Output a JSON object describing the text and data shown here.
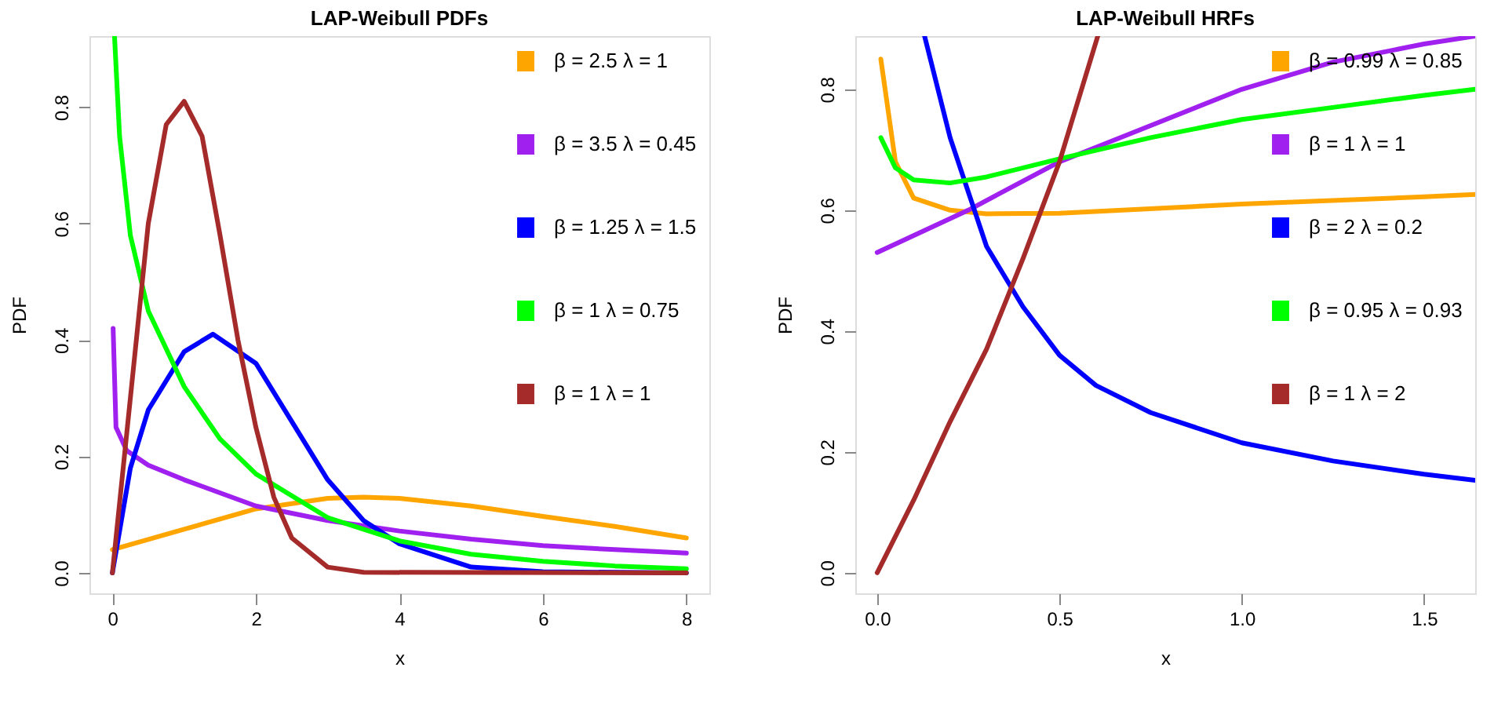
{
  "chart_data": [
    {
      "type": "line",
      "title": "LAP-Weibull PDFs",
      "xlabel": "x",
      "ylabel": "PDF",
      "xlim": [
        -0.32,
        8.32
      ],
      "ylim": [
        -0.035,
        0.922
      ],
      "xticks": [
        0,
        2,
        4,
        6,
        8
      ],
      "yticks": [
        {
          "value": 0,
          "label": "0.0"
        },
        {
          "value": 0.2,
          "label": "0.2"
        },
        {
          "value": 0.4,
          "label": "0.4"
        },
        {
          "value": 0.6,
          "label": "0.6"
        },
        {
          "value": 0.8,
          "label": "0.8"
        }
      ],
      "grid": false,
      "legend": "top right",
      "line_style": "solid",
      "series": [
        {
          "name": "β = 2.5  λ = 1",
          "color": "#ffa500",
          "x": [
            0,
            1,
            2,
            3,
            3.5,
            4,
            5,
            6,
            7,
            8
          ],
          "values": [
            0.04,
            0.075,
            0.11,
            0.128,
            0.13,
            0.128,
            0.115,
            0.097,
            0.08,
            0.06
          ]
        },
        {
          "name": "β = 3.5  λ = 0.45",
          "color": "#a020f0",
          "x": [
            0.01,
            0.05,
            0.2,
            0.5,
            1,
            2,
            3,
            4,
            5,
            6,
            7,
            8
          ],
          "values": [
            0.42,
            0.25,
            0.21,
            0.185,
            0.16,
            0.115,
            0.09,
            0.072,
            0.058,
            0.047,
            0.04,
            0.034
          ]
        },
        {
          "name": "β = 1.25  λ = 1.5",
          "color": "#0000ff",
          "x": [
            0,
            0.25,
            0.5,
            1,
            1.4,
            2,
            2.5,
            3,
            3.5,
            4,
            5,
            6,
            8
          ],
          "values": [
            0,
            0.18,
            0.28,
            0.38,
            0.41,
            0.36,
            0.26,
            0.16,
            0.09,
            0.05,
            0.01,
            0.002,
            0
          ]
        },
        {
          "name": "β = 1  λ = 0.75",
          "color": "#00ff00",
          "x": [
            0.03,
            0.1,
            0.25,
            0.5,
            1,
            1.5,
            2,
            3,
            4,
            5,
            6,
            7,
            8
          ],
          "values": [
            0.92,
            0.75,
            0.58,
            0.45,
            0.32,
            0.23,
            0.17,
            0.095,
            0.055,
            0.032,
            0.02,
            0.012,
            0.007
          ]
        },
        {
          "name": "β = 1  λ = 1",
          "color": "#a52a2a",
          "x": [
            0,
            0.25,
            0.5,
            0.75,
            1,
            1.25,
            1.5,
            1.75,
            2,
            2.25,
            2.5,
            3,
            3.5,
            8
          ],
          "values": [
            0,
            0.3,
            0.6,
            0.77,
            0.81,
            0.75,
            0.58,
            0.4,
            0.25,
            0.13,
            0.06,
            0.01,
            0.001,
            0
          ]
        }
      ]
    },
    {
      "type": "line",
      "title": "LAP-Weibull HRFs",
      "xlabel": "x",
      "ylabel": "PDF",
      "xlim": [
        -0.06,
        1.64
      ],
      "ylim": [
        -0.034,
        0.888
      ],
      "xticks": [
        {
          "value": 0,
          "label": "0.0"
        },
        {
          "value": 0.5,
          "label": "0.5"
        },
        {
          "value": 1,
          "label": "1.0"
        },
        {
          "value": 1.5,
          "label": "1.5"
        }
      ],
      "yticks": [
        {
          "value": 0,
          "label": "0.0"
        },
        {
          "value": 0.2,
          "label": "0.2"
        },
        {
          "value": 0.4,
          "label": "0.4"
        },
        {
          "value": 0.6,
          "label": "0.6"
        },
        {
          "value": 0.8,
          "label": "0.8"
        }
      ],
      "grid": false,
      "legend": "top right",
      "line_style": "solid",
      "series": [
        {
          "name": "β = 0.99  λ = 0.85",
          "color": "#ffa500",
          "x": [
            0.01,
            0.05,
            0.1,
            0.2,
            0.3,
            0.5,
            1,
            1.5,
            1.64
          ],
          "values": [
            0.85,
            0.68,
            0.62,
            0.6,
            0.594,
            0.595,
            0.61,
            0.622,
            0.626
          ]
        },
        {
          "name": "β = 1  λ = 1",
          "color": "#a020f0",
          "x": [
            0,
            0.25,
            0.5,
            0.75,
            1,
            1.25,
            1.5,
            1.64
          ],
          "values": [
            0.53,
            0.6,
            0.68,
            0.74,
            0.8,
            0.845,
            0.875,
            0.888
          ]
        },
        {
          "name": "β = 2  λ = 0.2",
          "color": "#0000ff",
          "x": [
            0.13,
            0.2,
            0.25,
            0.3,
            0.4,
            0.5,
            0.6,
            0.75,
            1,
            1.25,
            1.5,
            1.64
          ],
          "values": [
            0.888,
            0.72,
            0.63,
            0.54,
            0.44,
            0.36,
            0.31,
            0.265,
            0.215,
            0.185,
            0.163,
            0.153
          ]
        },
        {
          "name": "β = 0.95  λ = 0.93",
          "color": "#00ff00",
          "x": [
            0.01,
            0.05,
            0.1,
            0.2,
            0.3,
            0.5,
            0.75,
            1,
            1.25,
            1.5,
            1.64
          ],
          "values": [
            0.72,
            0.67,
            0.65,
            0.645,
            0.655,
            0.685,
            0.72,
            0.75,
            0.77,
            0.79,
            0.8
          ]
        },
        {
          "name": "β = 1  λ = 2",
          "color": "#a52a2a",
          "x": [
            0,
            0.1,
            0.2,
            0.3,
            0.4,
            0.5,
            0.605
          ],
          "values": [
            0,
            0.12,
            0.25,
            0.37,
            0.52,
            0.68,
            0.888
          ]
        }
      ]
    }
  ]
}
